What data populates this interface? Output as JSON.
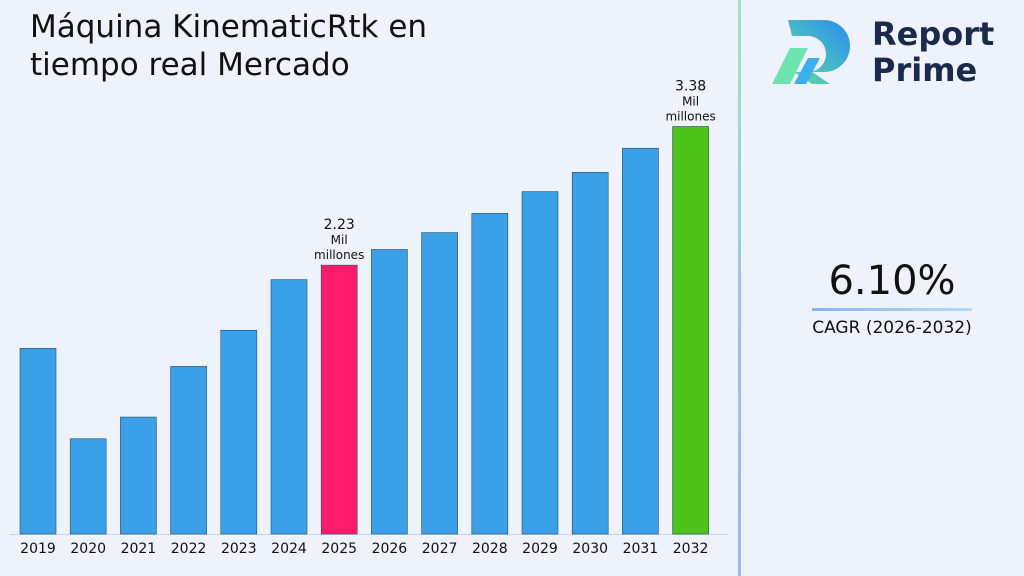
{
  "title": "Máquina KinematicRtk en tiempo real Mercado",
  "brand": {
    "line1": "Report",
    "line2": "Prime"
  },
  "cagr": {
    "value": "6.10%",
    "label": "CAGR (2026-2032)"
  },
  "colors": {
    "bar": "#3aa0e8",
    "highlight": "#ff1b6b",
    "final": "#4cc21a",
    "divider": "#9fc3ee"
  },
  "chart_data": {
    "type": "bar",
    "categories": [
      "2019",
      "2020",
      "2021",
      "2022",
      "2023",
      "2024",
      "2025",
      "2026",
      "2027",
      "2028",
      "2029",
      "2030",
      "2031",
      "2032"
    ],
    "values": [
      1.54,
      0.79,
      0.97,
      1.39,
      1.69,
      2.11,
      2.23,
      2.36,
      2.5,
      2.66,
      2.84,
      3.0,
      3.2,
      3.38
    ],
    "ylim": [
      0,
      3.6
    ],
    "title": "",
    "xlabel": "",
    "ylabel": "",
    "bar_colors": [
      "bar",
      "bar",
      "bar",
      "bar",
      "bar",
      "bar",
      "highlight",
      "bar",
      "bar",
      "bar",
      "bar",
      "bar",
      "bar",
      "final"
    ],
    "annotations": [
      {
        "category": "2025",
        "value_text": "2.23",
        "unit_line1": "Mil",
        "unit_line2": "millones"
      },
      {
        "category": "2032",
        "value_text": "3.38",
        "unit_line1": "Mil",
        "unit_line2": "millones"
      }
    ]
  }
}
